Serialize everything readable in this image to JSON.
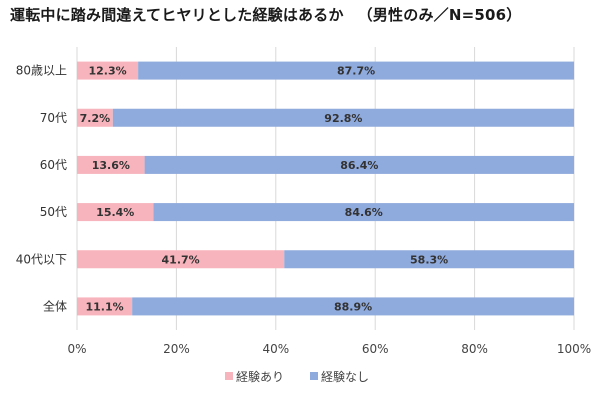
{
  "chart_data": {
    "type": "bar",
    "orientation": "horizontal",
    "stacked": true,
    "title": "運転中に踏み間違えてヒヤリとした経験はあるか",
    "subtitle": "（男性のみ／N=506）",
    "categories": [
      "80歳以上",
      "70代",
      "60代",
      "50代",
      "40代以下",
      "全体"
    ],
    "series": [
      {
        "name": "経験あり",
        "color": "#f8b4bc",
        "values": [
          12.3,
          7.2,
          13.6,
          15.4,
          41.7,
          11.1
        ],
        "labels": [
          "12.3%",
          "7.2%",
          "13.6%",
          "15.4%",
          "41.7%",
          "11.1%"
        ]
      },
      {
        "name": "経験なし",
        "color": "#8faadc",
        "values": [
          87.7,
          92.8,
          86.4,
          84.6,
          58.3,
          88.9
        ],
        "labels": [
          "87.7%",
          "92.8%",
          "86.4%",
          "84.6%",
          "58.3%",
          "88.9%"
        ]
      }
    ],
    "xlim": [
      0,
      100
    ],
    "xticks": [
      0,
      20,
      40,
      60,
      80,
      100
    ],
    "xtick_labels": [
      "0%",
      "20%",
      "40%",
      "60%",
      "80%",
      "100%"
    ],
    "grid": true,
    "legend_position": "bottom"
  }
}
